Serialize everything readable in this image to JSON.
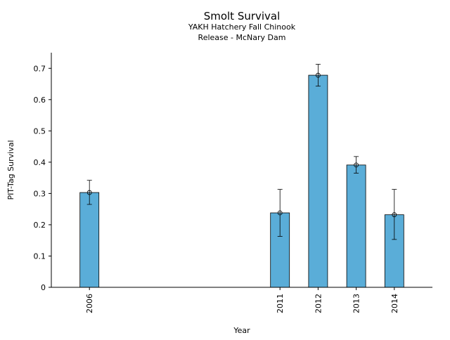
{
  "chart_data": {
    "type": "bar",
    "title": "Smolt Survival",
    "subtitle_line1": "YAKH Hatchery Fall Chinook",
    "subtitle_line2": "Release - McNary Dam",
    "xlabel": "Year",
    "ylabel": "PIT-Tag Survival",
    "xlim": [
      2005,
      2015
    ],
    "ylim": [
      0,
      0.75
    ],
    "yticks": [
      0,
      0.1,
      0.2,
      0.3,
      0.4,
      0.5,
      0.6,
      0.7
    ],
    "ytick_labels": [
      "0",
      "0.1",
      "0.2",
      "0.3",
      "0.4",
      "0.5",
      "0.6",
      "0.7"
    ],
    "bar_color": "#5aadd8",
    "bar_edge_color": "#000000",
    "grid": false,
    "points": [
      {
        "year": 2006,
        "label": "2006",
        "value": 0.303,
        "err_low": 0.265,
        "err_high": 0.342
      },
      {
        "year": 2011,
        "label": "2011",
        "value": 0.238,
        "err_low": 0.163,
        "err_high": 0.313
      },
      {
        "year": 2012,
        "label": "2012",
        "value": 0.678,
        "err_low": 0.643,
        "err_high": 0.713
      },
      {
        "year": 2013,
        "label": "2013",
        "value": 0.391,
        "err_low": 0.365,
        "err_high": 0.418
      },
      {
        "year": 2014,
        "label": "2014",
        "value": 0.232,
        "err_low": 0.153,
        "err_high": 0.313
      }
    ]
  }
}
